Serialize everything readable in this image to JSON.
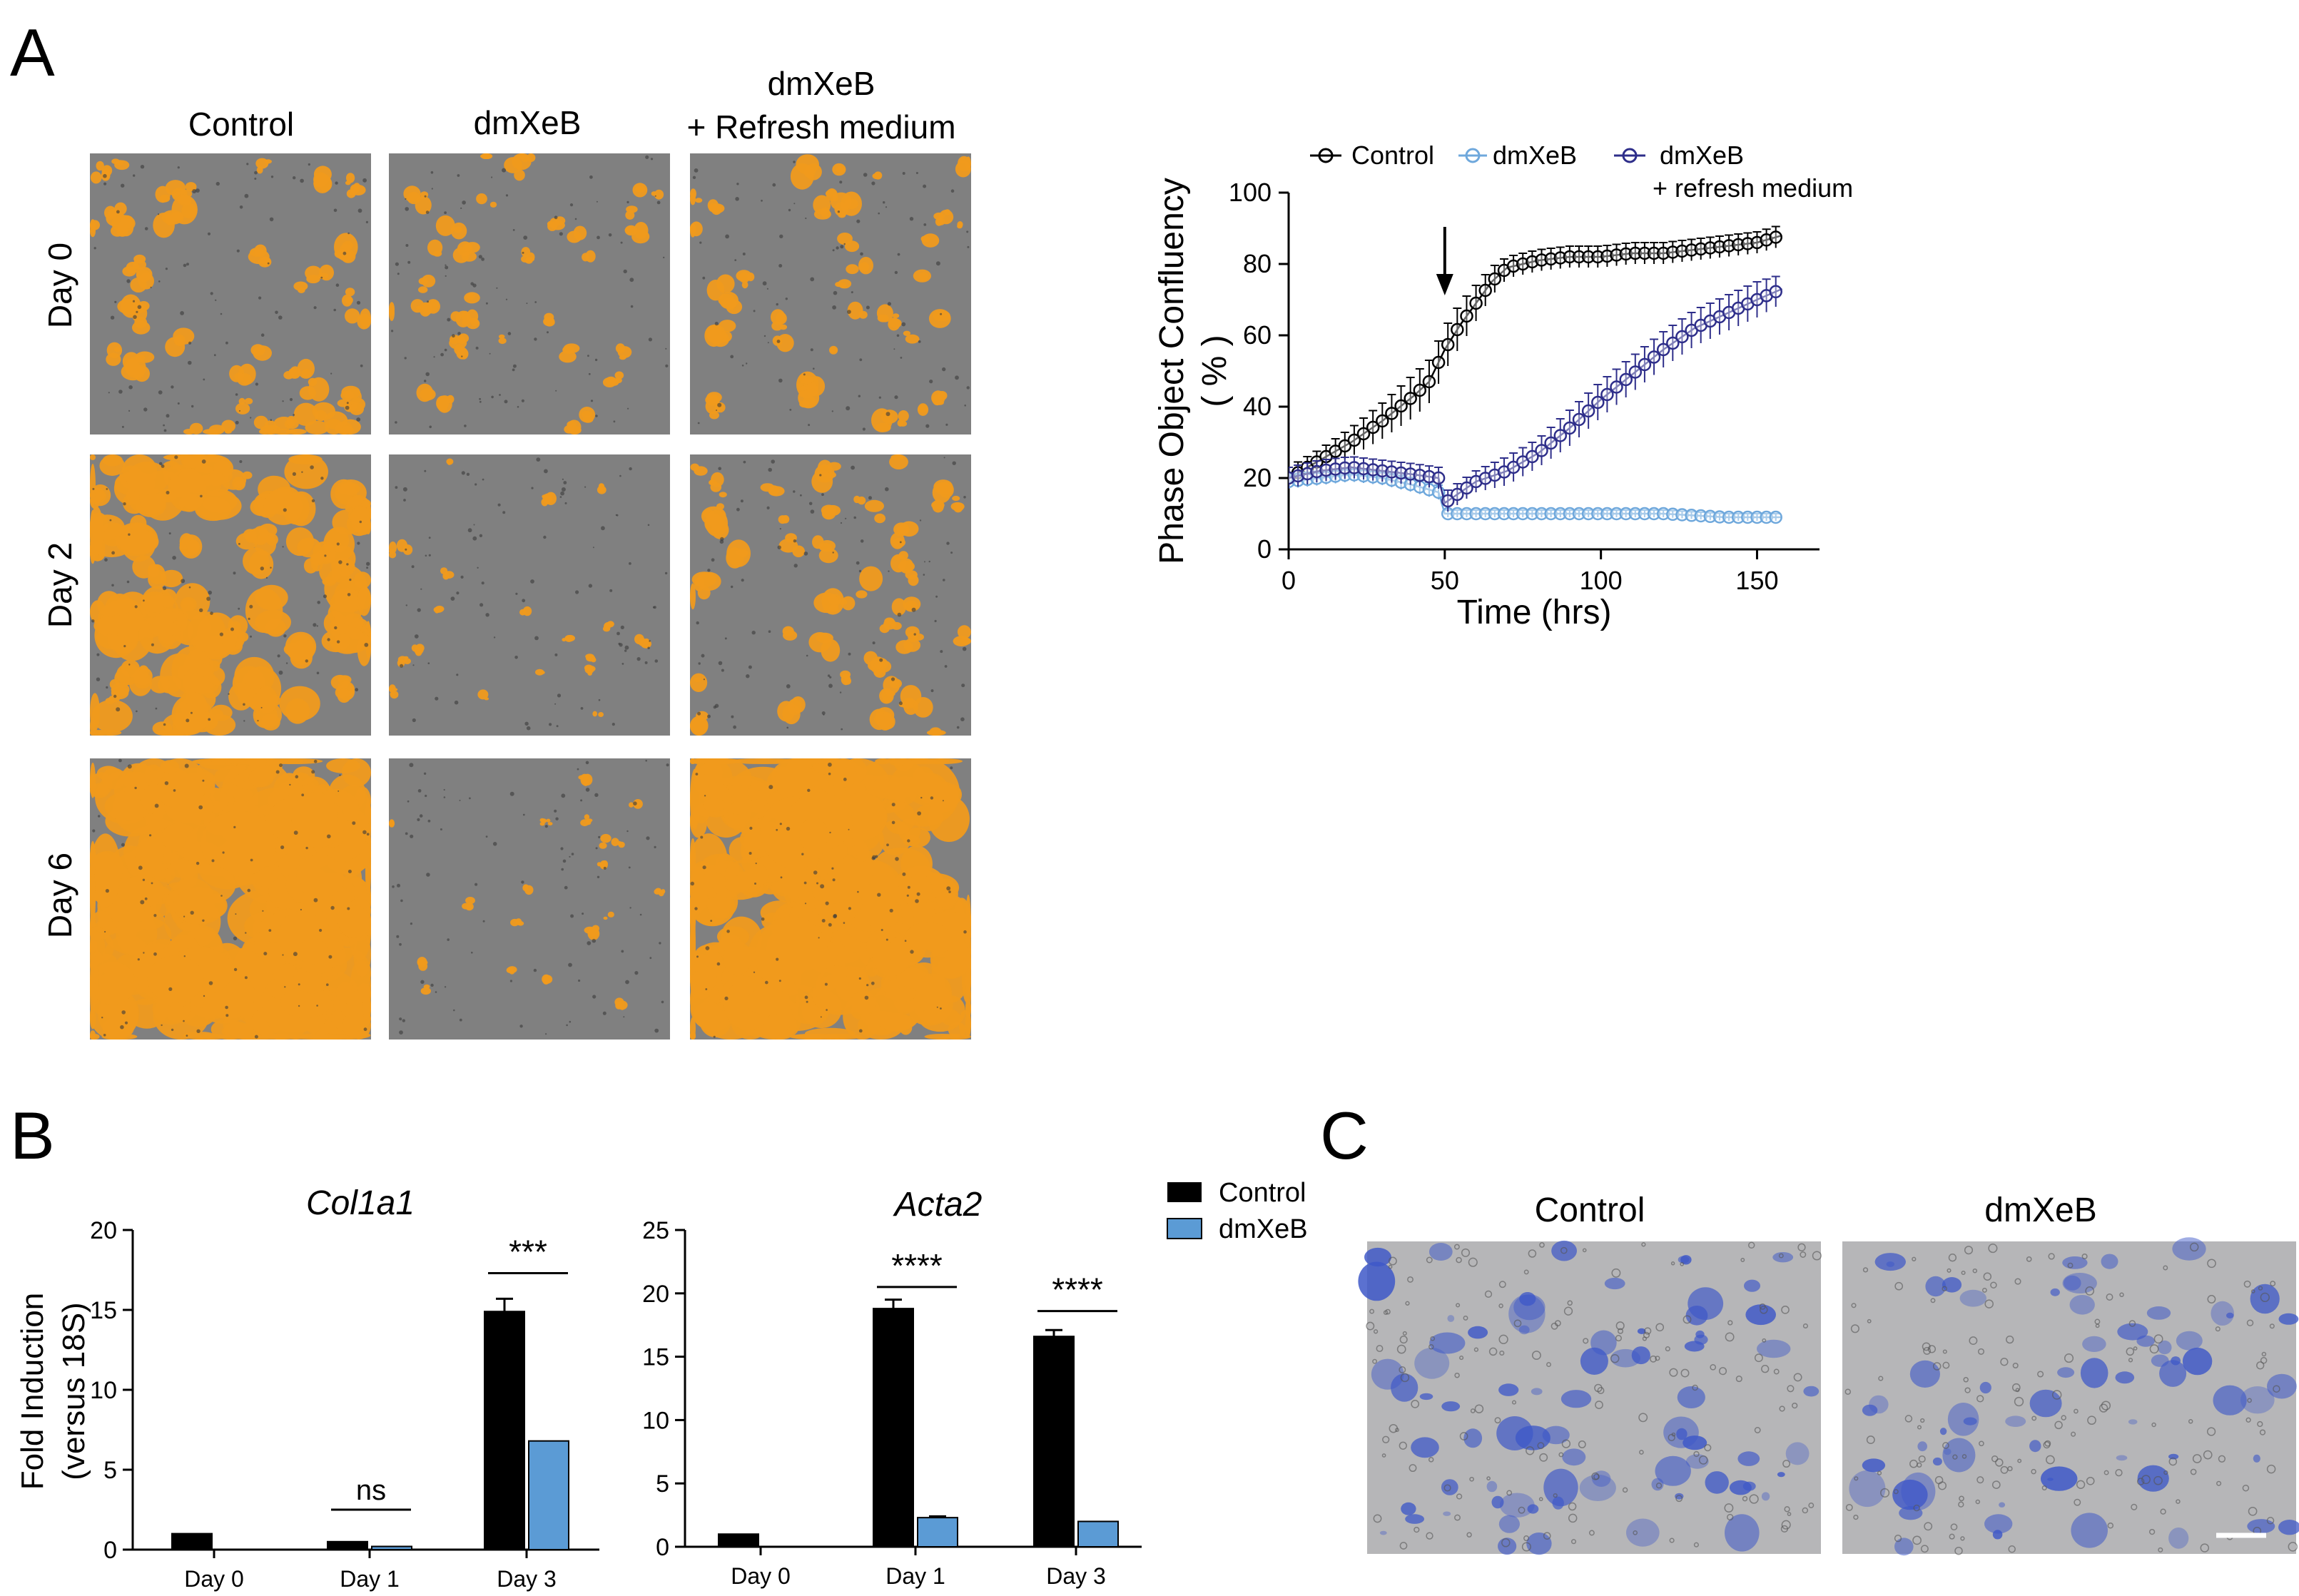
{
  "panel_labels": {
    "a": "A",
    "b": "B",
    "c": "C"
  },
  "panel_a": {
    "columns": [
      "Control",
      "dmXeB",
      "dmXeB",
      "+ Refresh medium"
    ],
    "rows": [
      "Day 0",
      "Day 2",
      "Day 6"
    ],
    "colors": {
      "overlay": "#f09a1c",
      "background": "#808080",
      "overlay_dark": "#c7760f"
    },
    "images": [
      {
        "name": "micro-control-day0",
        "coverage": 0.22
      },
      {
        "name": "micro-dmxeb-day0",
        "coverage": 0.16
      },
      {
        "name": "micro-refresh-day0",
        "coverage": 0.2
      },
      {
        "name": "micro-control-day2",
        "coverage": 0.5
      },
      {
        "name": "micro-dmxeb-day2",
        "coverage": 0.05
      },
      {
        "name": "micro-refresh-day2",
        "coverage": 0.22
      },
      {
        "name": "micro-control-day6",
        "coverage": 0.82
      },
      {
        "name": "micro-dmxeb-day6",
        "coverage": 0.06
      },
      {
        "name": "micro-refresh-day6",
        "coverage": 0.78
      }
    ]
  },
  "panel_c": {
    "titles": [
      "Control",
      "dmXeB"
    ],
    "colors": {
      "background": "#b6b6b8",
      "stain": "#3e58c8"
    },
    "images": [
      {
        "name": "stain-control",
        "coverage": 0.3
      },
      {
        "name": "stain-dmxeb",
        "coverage": 0.22
      }
    ]
  },
  "chart_data": [
    {
      "id": "confluency",
      "type": "line",
      "title": "",
      "xlabel": "Time (hrs)",
      "ylabel_lines": [
        "Phase Object Confluency",
        "( % )"
      ],
      "xlim": [
        0,
        170
      ],
      "ylim": [
        0,
        100
      ],
      "xticks": [
        0,
        50,
        100,
        150
      ],
      "yticks": [
        0,
        20,
        40,
        60,
        80,
        100
      ],
      "legend": [
        "Control",
        "dmXeB",
        "dmXeB",
        "+ refresh medium"
      ],
      "arrow_at_x": 50,
      "series": [
        {
          "name": "Control",
          "color": "#000000",
          "x": [
            0,
            10,
            20,
            30,
            40,
            45,
            50,
            55,
            60,
            65,
            70,
            80,
            90,
            100,
            110,
            120,
            130,
            140,
            150,
            158
          ],
          "y": [
            20,
            25,
            30,
            36,
            43,
            47,
            56,
            63,
            69,
            75,
            79,
            81,
            82,
            82,
            83,
            83,
            84,
            85,
            86,
            88
          ],
          "err": [
            3,
            3,
            4,
            5,
            6,
            6,
            6,
            6,
            5,
            4,
            3,
            3,
            3,
            3,
            3,
            3,
            3,
            3,
            3,
            3
          ]
        },
        {
          "name": "dmXeB",
          "color": "#6fa8dc",
          "x": [
            0,
            10,
            20,
            30,
            40,
            48,
            50,
            55,
            60,
            80,
            100,
            120,
            140,
            158
          ],
          "y": [
            19,
            20,
            21,
            20,
            18,
            16,
            10,
            10,
            10,
            10,
            10,
            10,
            9,
            9
          ],
          "err": [
            2,
            2,
            2,
            2,
            2,
            2,
            1,
            1,
            1,
            1,
            1,
            1,
            1,
            1
          ]
        },
        {
          "name": "dmXeB + refresh medium",
          "color": "#2e2e8a",
          "x": [
            0,
            10,
            20,
            30,
            40,
            48,
            50,
            55,
            60,
            70,
            80,
            90,
            100,
            110,
            120,
            130,
            140,
            150,
            158
          ],
          "y": [
            20,
            22,
            23,
            22,
            21,
            20,
            13,
            16,
            19,
            22,
            27,
            34,
            42,
            49,
            56,
            62,
            66,
            70,
            73
          ],
          "err": [
            3,
            3,
            3,
            3,
            3,
            3,
            3,
            3,
            3,
            4,
            4,
            5,
            5,
            5,
            5,
            5,
            5,
            5,
            4
          ]
        }
      ]
    },
    {
      "id": "col1a1",
      "type": "bar",
      "title": "Col1a1",
      "ylabel_lines": [
        "Fold  Induction",
        "(versus 18S)"
      ],
      "categories": [
        "Day 0",
        "Day 1",
        "Day 3"
      ],
      "ylim": [
        0,
        20
      ],
      "yticks": [
        0,
        5,
        10,
        15,
        20
      ],
      "series": [
        {
          "name": "Control",
          "color": "#000000",
          "values": [
            1.0,
            0.5,
            14.9
          ],
          "err": [
            0,
            0,
            0.8
          ]
        },
        {
          "name": "dmXeB",
          "color": "#5b9bd5",
          "values": [
            null,
            0.2,
            6.8
          ],
          "err": [
            0,
            0,
            0
          ]
        }
      ],
      "significance": [
        {
          "category": "Day 1",
          "label": "ns",
          "y": 2.5
        },
        {
          "category": "Day 3",
          "label": "***",
          "y": 17.3
        }
      ]
    },
    {
      "id": "acta2",
      "type": "bar",
      "title": "Acta2",
      "categories": [
        "Day 0",
        "Day 1",
        "Day 3"
      ],
      "ylim": [
        0,
        25
      ],
      "yticks": [
        0,
        5,
        10,
        15,
        20,
        25
      ],
      "series": [
        {
          "name": "Control",
          "color": "#000000",
          "values": [
            1.0,
            18.8,
            16.6
          ],
          "err": [
            0,
            0.7,
            0.5
          ]
        },
        {
          "name": "dmXeB",
          "color": "#5b9bd5",
          "values": [
            null,
            2.3,
            2.0
          ],
          "err": [
            0,
            0.1,
            0
          ]
        }
      ],
      "significance": [
        {
          "category": "Day 1",
          "label": "****",
          "y": 20.5
        },
        {
          "category": "Day 3",
          "label": "****",
          "y": 18.6
        }
      ],
      "legend": [
        "Control",
        "dmXeB"
      ]
    }
  ]
}
